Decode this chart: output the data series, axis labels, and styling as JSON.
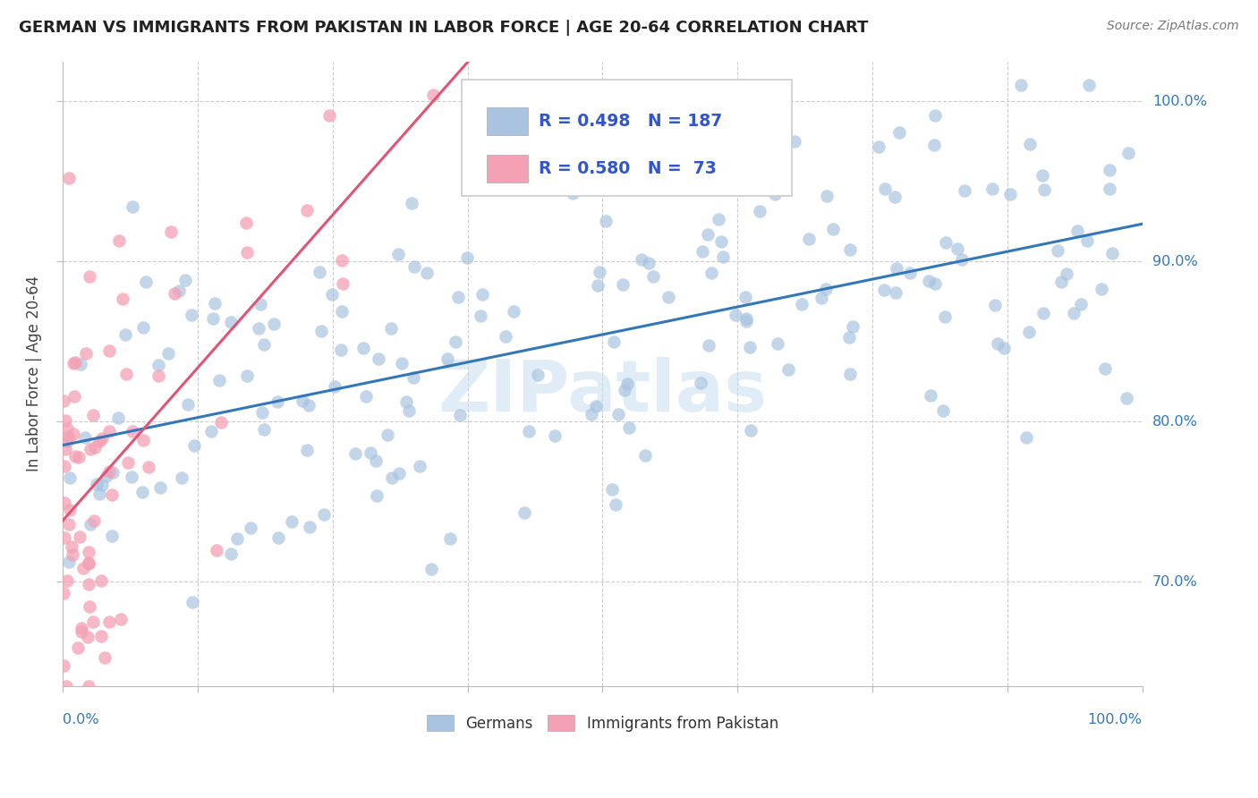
{
  "title": "GERMAN VS IMMIGRANTS FROM PAKISTAN IN LABOR FORCE | AGE 20-64 CORRELATION CHART",
  "source": "Source: ZipAtlas.com",
  "ylabel": "In Labor Force | Age 20-64",
  "ytick_labels": [
    "70.0%",
    "80.0%",
    "90.0%",
    "100.0%"
  ],
  "ytick_values": [
    0.7,
    0.8,
    0.9,
    1.0
  ],
  "legend_german_R": "0.498",
  "legend_german_N": "187",
  "legend_pak_R": "0.580",
  "legend_pak_N": "73",
  "german_color": "#a8c4e0",
  "pak_color": "#f4a0b5",
  "german_line_color": "#3377bb",
  "pak_line_color": "#e05575",
  "watermark": "ZIPatlas",
  "german_scatter_seed": 42,
  "pak_scatter_seed": 123
}
